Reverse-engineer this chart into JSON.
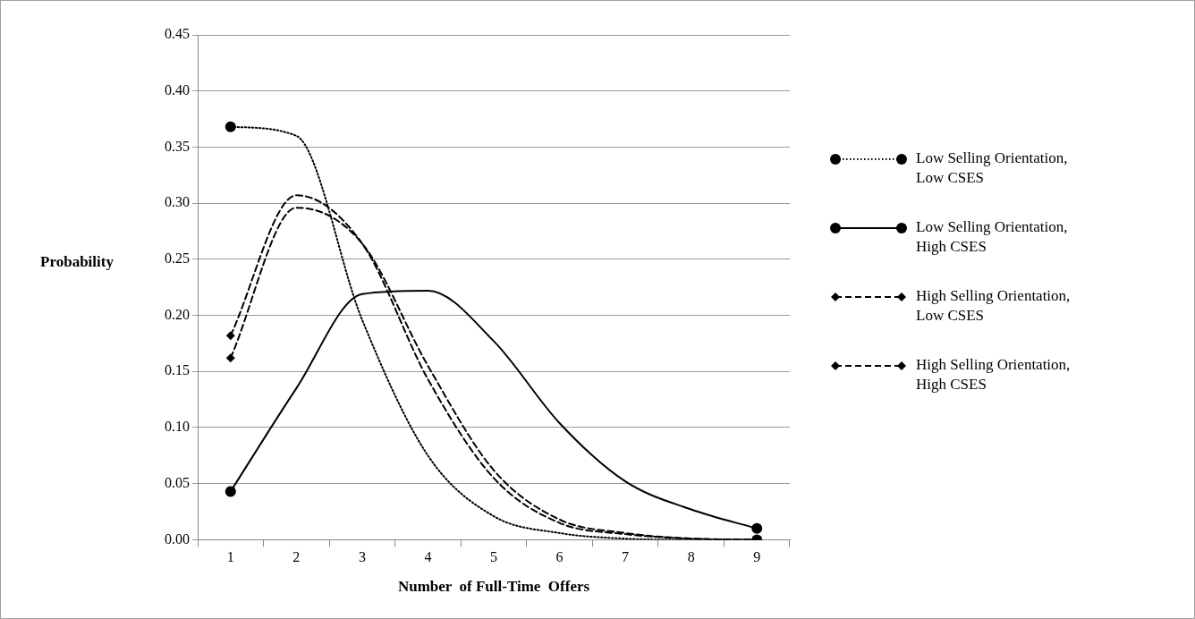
{
  "chart_data": {
    "type": "line",
    "xlabel": "Number  of Full-Time  Offers",
    "ylabel": "Probability",
    "categories": [
      "1",
      "2",
      "3",
      "4",
      "5",
      "6",
      "7",
      "8",
      "9"
    ],
    "ylim": [
      0,
      0.45
    ],
    "yticks": [
      {
        "value": 0,
        "label": "0.00"
      },
      {
        "value": 0.05,
        "label": "0.05"
      },
      {
        "value": 0.1,
        "label": "0.10"
      },
      {
        "value": 0.15,
        "label": "0.15"
      },
      {
        "value": 0.2,
        "label": "0.20"
      },
      {
        "value": 0.25,
        "label": "0.25"
      },
      {
        "value": 0.3,
        "label": "0.30"
      },
      {
        "value": 0.35,
        "label": "0.35"
      },
      {
        "value": 0.4,
        "label": "0.40"
      },
      {
        "value": 0.45,
        "label": "0.45"
      }
    ],
    "grid": "y",
    "legend": "right",
    "series": [
      {
        "name": "Low Selling Orientation, Low CSES",
        "color": "#000000",
        "line_style": "dotted",
        "values": [
          0.368,
          0.36,
          0.196,
          0.075,
          0.021,
          0.006,
          0.001,
          0,
          0
        ]
      },
      {
        "type": "scatter",
        "color": "#000000",
        "marker": "circle",
        "x": [
          "1",
          "9"
        ],
        "values": [
          0.368,
          0
        ]
      },
      {
        "name": "Low Selling Orientation, High CSES",
        "color": "#000000",
        "line_style": "solid",
        "values": [
          0.043,
          0.135,
          0.219,
          0.222,
          0.177,
          0.104,
          0.052,
          0.027,
          0.01
        ]
      },
      {
        "type": "scatter",
        "color": "#000000",
        "marker": "circle",
        "x": [
          "1",
          "9"
        ],
        "values": [
          0.043,
          0.01
        ]
      },
      {
        "name": "High Selling Orientation, Low CSES",
        "color": "#000000",
        "line_style": "dashed",
        "values": [
          0.162,
          0.296,
          0.264,
          0.155,
          0.062,
          0.018,
          0.006,
          0.001,
          0
        ]
      },
      {
        "type": "scatter",
        "color": "#000000",
        "marker": "diamond",
        "x": [
          "1",
          "9"
        ],
        "values": [
          0.162,
          0
        ]
      },
      {
        "name": "High Selling Orientation, High CSES",
        "color": "#000000",
        "line_style": "dashed",
        "values": [
          0.182,
          0.307,
          0.264,
          0.143,
          0.055,
          0.015,
          0.005,
          0.001,
          0
        ]
      },
      {
        "type": "scatter",
        "color": "#000000",
        "marker": "diamond",
        "x": [
          "1",
          "9"
        ],
        "values": [
          0.182,
          0
        ]
      }
    ]
  }
}
